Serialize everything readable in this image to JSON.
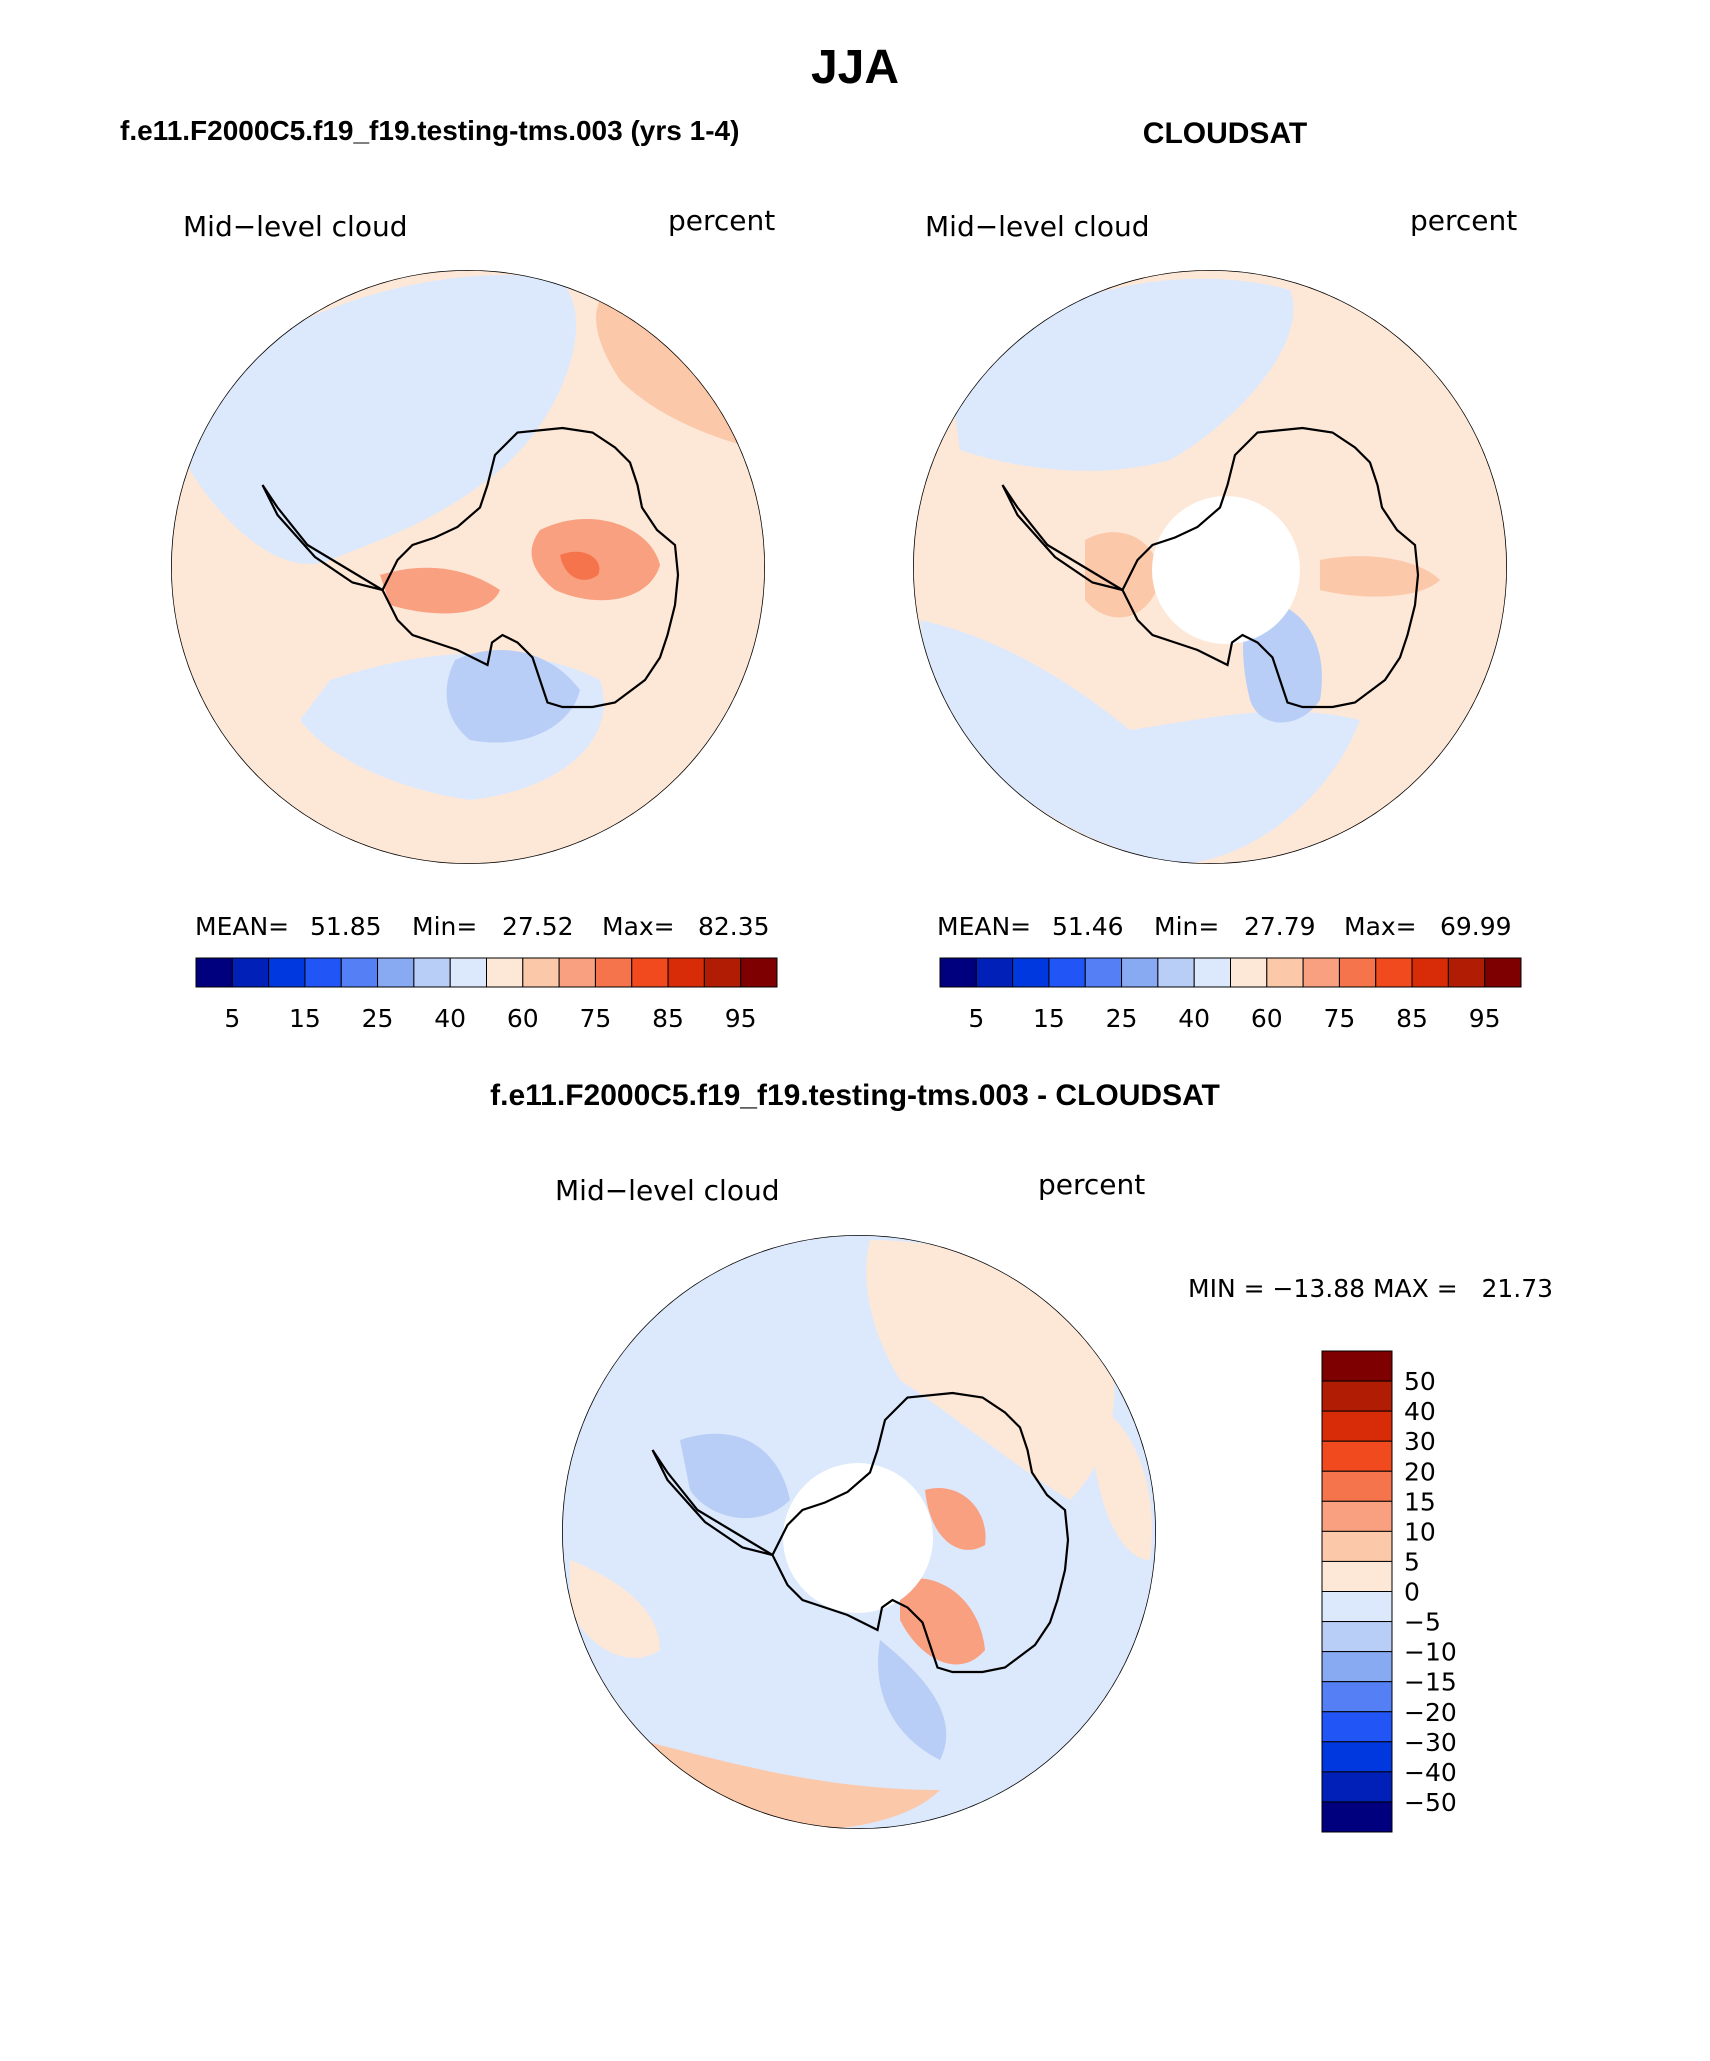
{
  "figure_title": "JJA",
  "panels": [
    {
      "header": "f.e11.F2000C5.f19_f19.testing-tms.003 (yrs 1-4)",
      "variable": "Mid−level cloud",
      "units": "percent",
      "stats": {
        "mean_label": "MEAN=",
        "mean": "51.85",
        "min_label": "Min=",
        "min": "27.52",
        "max_label": "Max=",
        "max": "82.35"
      },
      "has_polar_gap": false
    },
    {
      "header": "CLOUDSAT",
      "variable": "Mid−level cloud",
      "units": "percent",
      "stats": {
        "mean_label": "MEAN=",
        "mean": "51.46",
        "min_label": "Min=",
        "min": "27.79",
        "max_label": "Max=",
        "max": "69.99"
      },
      "has_polar_gap": true
    },
    {
      "header": "f.e11.F2000C5.f19_f19.testing-tms.003 - CLOUDSAT",
      "variable": "Mid−level cloud",
      "units": "percent",
      "minmax_text": "MIN = −13.88 MAX =   21.73",
      "has_polar_gap": true
    }
  ],
  "colorbar_abs": {
    "colors": [
      "#00007f",
      "#0020b8",
      "#0038e0",
      "#2255f5",
      "#5580f5",
      "#88aaf2",
      "#b9cef6",
      "#dce8fb",
      "#fde8d8",
      "#fcc8aa",
      "#f9a080",
      "#f5744c",
      "#f04a1e",
      "#d82c08",
      "#b01c04",
      "#7e0000"
    ],
    "tick_labels": [
      "5",
      "15",
      "25",
      "40",
      "60",
      "75",
      "85",
      "95"
    ]
  },
  "colorbar_diff": {
    "colors_top_to_bottom": [
      "#7e0000",
      "#b01c04",
      "#d82c08",
      "#f04a1e",
      "#f5744c",
      "#f9a080",
      "#fcc8aa",
      "#fde8d8",
      "#dce8fb",
      "#b9cef6",
      "#88aaf2",
      "#5580f5",
      "#2255f5",
      "#0038e0",
      "#0020b8",
      "#00007f"
    ],
    "tick_labels": [
      "50",
      "40",
      "30",
      "20",
      "15",
      "10",
      "5",
      "0",
      "−5",
      "−10",
      "−15",
      "−20",
      "−30",
      "−40",
      "−50"
    ]
  }
}
